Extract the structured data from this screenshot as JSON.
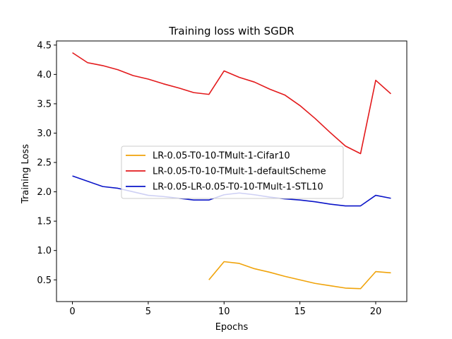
{
  "chart_data": {
    "type": "line",
    "title": "Training loss with SGDR",
    "xlabel": "Epochs",
    "ylabel": "Training Loss",
    "xlim": [
      -1.05,
      22.05
    ],
    "ylim": [
      0.13,
      4.57
    ],
    "xticks": [
      0,
      5,
      10,
      15,
      20
    ],
    "yticks": [
      0.5,
      1.0,
      1.5,
      2.0,
      2.5,
      3.0,
      3.5,
      4.0,
      4.5
    ],
    "ytick_labels": [
      "0.5",
      "1.0",
      "1.5",
      "2.0",
      "2.5",
      "3.0",
      "3.5",
      "4.0",
      "4.5"
    ],
    "grid": false,
    "legend_position": "center-left",
    "series": [
      {
        "name": "LR-0.05-T0-10-TMult-1-Cifar10",
        "color": "#f0a30a",
        "x": [
          9,
          10,
          11,
          12,
          13,
          14,
          15,
          16,
          17,
          18,
          19,
          20,
          21
        ],
        "y": [
          0.5,
          0.81,
          0.78,
          0.69,
          0.63,
          0.56,
          0.5,
          0.44,
          0.4,
          0.36,
          0.35,
          0.64,
          0.62
        ]
      },
      {
        "name": "LR-0.05-T0-10-TMult-1-defaultScheme",
        "color": "#e31a1c",
        "x": [
          0,
          1,
          2,
          3,
          4,
          5,
          6,
          7,
          8,
          9,
          10,
          11,
          12,
          13,
          14,
          15,
          16,
          17,
          18,
          19,
          20,
          21
        ],
        "y": [
          4.37,
          4.2,
          4.15,
          4.08,
          3.98,
          3.92,
          3.84,
          3.77,
          3.69,
          3.66,
          4.06,
          3.95,
          3.87,
          3.75,
          3.65,
          3.47,
          3.25,
          3.01,
          2.78,
          2.65,
          3.9,
          3.67
        ]
      },
      {
        "name": "LR-0.05-LR-0.05-T0-10-TMult-1-STL10",
        "color": "#0a14c8",
        "x": [
          0,
          1,
          2,
          3,
          4,
          5,
          6,
          7,
          8,
          9,
          10,
          11,
          12,
          13,
          14,
          15,
          16,
          17,
          18,
          19,
          20,
          21
        ],
        "y": [
          2.27,
          2.18,
          2.09,
          2.06,
          2.0,
          1.94,
          1.92,
          1.89,
          1.86,
          1.86,
          1.95,
          1.98,
          1.95,
          1.91,
          1.88,
          1.86,
          1.83,
          1.79,
          1.76,
          1.76,
          1.94,
          1.89
        ]
      }
    ]
  }
}
